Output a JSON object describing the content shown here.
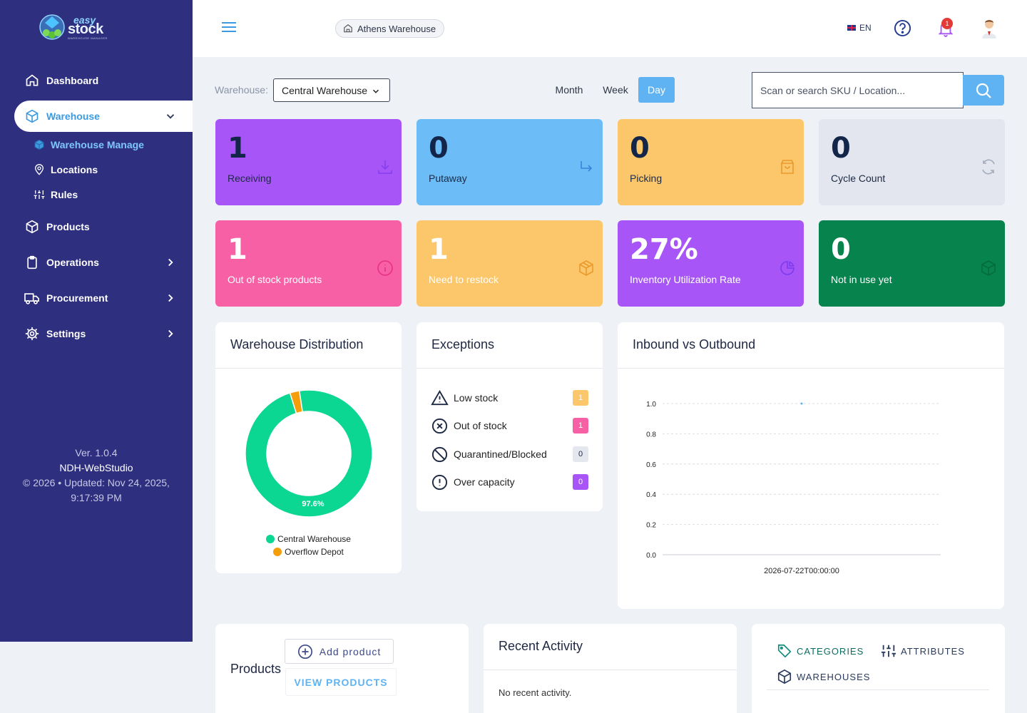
{
  "brand": {
    "top": "easy",
    "main": "stock",
    "sub": "WAREHOUSE MANAGER"
  },
  "sidebar": {
    "items": [
      {
        "label": "Dashboard",
        "icon": "home-icon"
      },
      {
        "label": "Warehouse",
        "icon": "cube-icon",
        "active": true
      },
      {
        "label": "Products",
        "icon": "box-icon"
      },
      {
        "label": "Operations",
        "icon": "clipboard-icon"
      },
      {
        "label": "Procurement",
        "icon": "truck-icon"
      },
      {
        "label": "Settings",
        "icon": "gear-icon"
      }
    ],
    "subitems": [
      {
        "label": "Warehouse Manage",
        "icon": "cube-icon",
        "active": true
      },
      {
        "label": "Locations",
        "icon": "map-pin-icon"
      },
      {
        "label": "Rules",
        "icon": "sliders-icon"
      }
    ],
    "footer": {
      "version": "Ver. 1.0.4",
      "studio": "NDH-WebStudio",
      "copyright_line1": "© 2026 • Updated: Nov 24, 2025,",
      "copyright_line2": "9:17:39 PM"
    }
  },
  "topbar": {
    "current_warehouse": "Athens Warehouse",
    "language": "EN",
    "notification_count": "1"
  },
  "filters": {
    "warehouse_label": "Warehouse:",
    "warehouse_value": "Central Warehouse",
    "periods": [
      "Month",
      "Week",
      "Day"
    ],
    "active_period": "Day",
    "search_placeholder": "Scan or search SKU / Location..."
  },
  "cards": [
    {
      "value": "1",
      "label": "Receiving",
      "color": "#a855f7",
      "icon": "download-icon"
    },
    {
      "value": "0",
      "label": "Putaway",
      "color": "#6bbcf7",
      "icon": "arrow-turn-icon"
    },
    {
      "value": "0",
      "label": "Picking",
      "color": "#fcc66a",
      "icon": "shopping-bag-icon"
    },
    {
      "value": "0",
      "label": "Cycle Count",
      "color": "#e3e6ee",
      "icon": "refresh-icon"
    },
    {
      "value": "1",
      "label": "Out of stock products",
      "color": "#f860a6",
      "icon": "info-icon"
    },
    {
      "value": "1",
      "label": "Need to restock",
      "color": "#fcc66a",
      "icon": "package-icon"
    },
    {
      "value": "27%",
      "label": "Inventory Utilization Rate",
      "color": "#a855f7",
      "icon": "pie-chart-icon"
    },
    {
      "value": "0",
      "label": "Not in use yet",
      "color": "#07834d",
      "icon": "cube-icon"
    }
  ],
  "distribution": {
    "title": "Warehouse Distribution",
    "chart_data": {
      "type": "pie",
      "categories": [
        "Central Warehouse",
        "Overflow Depot"
      ],
      "values": [
        97.6,
        2.4
      ],
      "colors": [
        "#0bd692",
        "#f59e0b"
      ],
      "data_labels": [
        "97.6%"
      ],
      "legend": "bottom"
    }
  },
  "exceptions": {
    "title": "Exceptions",
    "rows": [
      {
        "label": "Low stock",
        "count": "1",
        "icon": "warning-triangle-icon",
        "badge_bg": "#fcc66a"
      },
      {
        "label": "Out of stock",
        "count": "1",
        "icon": "x-circle-icon",
        "badge_bg": "#f860a6"
      },
      {
        "label": "Quarantined/Blocked",
        "count": "0",
        "icon": "ban-icon",
        "badge_bg": "#e5e7ee"
      },
      {
        "label": "Over capacity",
        "count": "0",
        "icon": "alert-circle-icon",
        "badge_bg": "#a855f7"
      }
    ]
  },
  "inbound_outbound": {
    "title": "Inbound vs Outbound",
    "chart_data": {
      "type": "line",
      "x": [
        "2026-07-22T00:00:00"
      ],
      "series": [
        {
          "values": [
            1.0
          ],
          "color": "#5fb3f3"
        }
      ],
      "ylim": [
        0,
        1
      ],
      "yticks": [
        "0.0",
        "0.2",
        "0.4",
        "0.6",
        "0.8",
        "1.0"
      ],
      "grid": true
    }
  },
  "products_panel": {
    "title": "Products",
    "add_label": "Add product",
    "view_label": "VIEW PRODUCTS"
  },
  "activity": {
    "title": "Recent Activity",
    "empty": "No recent activity."
  },
  "links": {
    "categories": "CATEGORIES",
    "attributes": "ATTRIBUTES",
    "warehouses": "WAREHOUSES"
  }
}
